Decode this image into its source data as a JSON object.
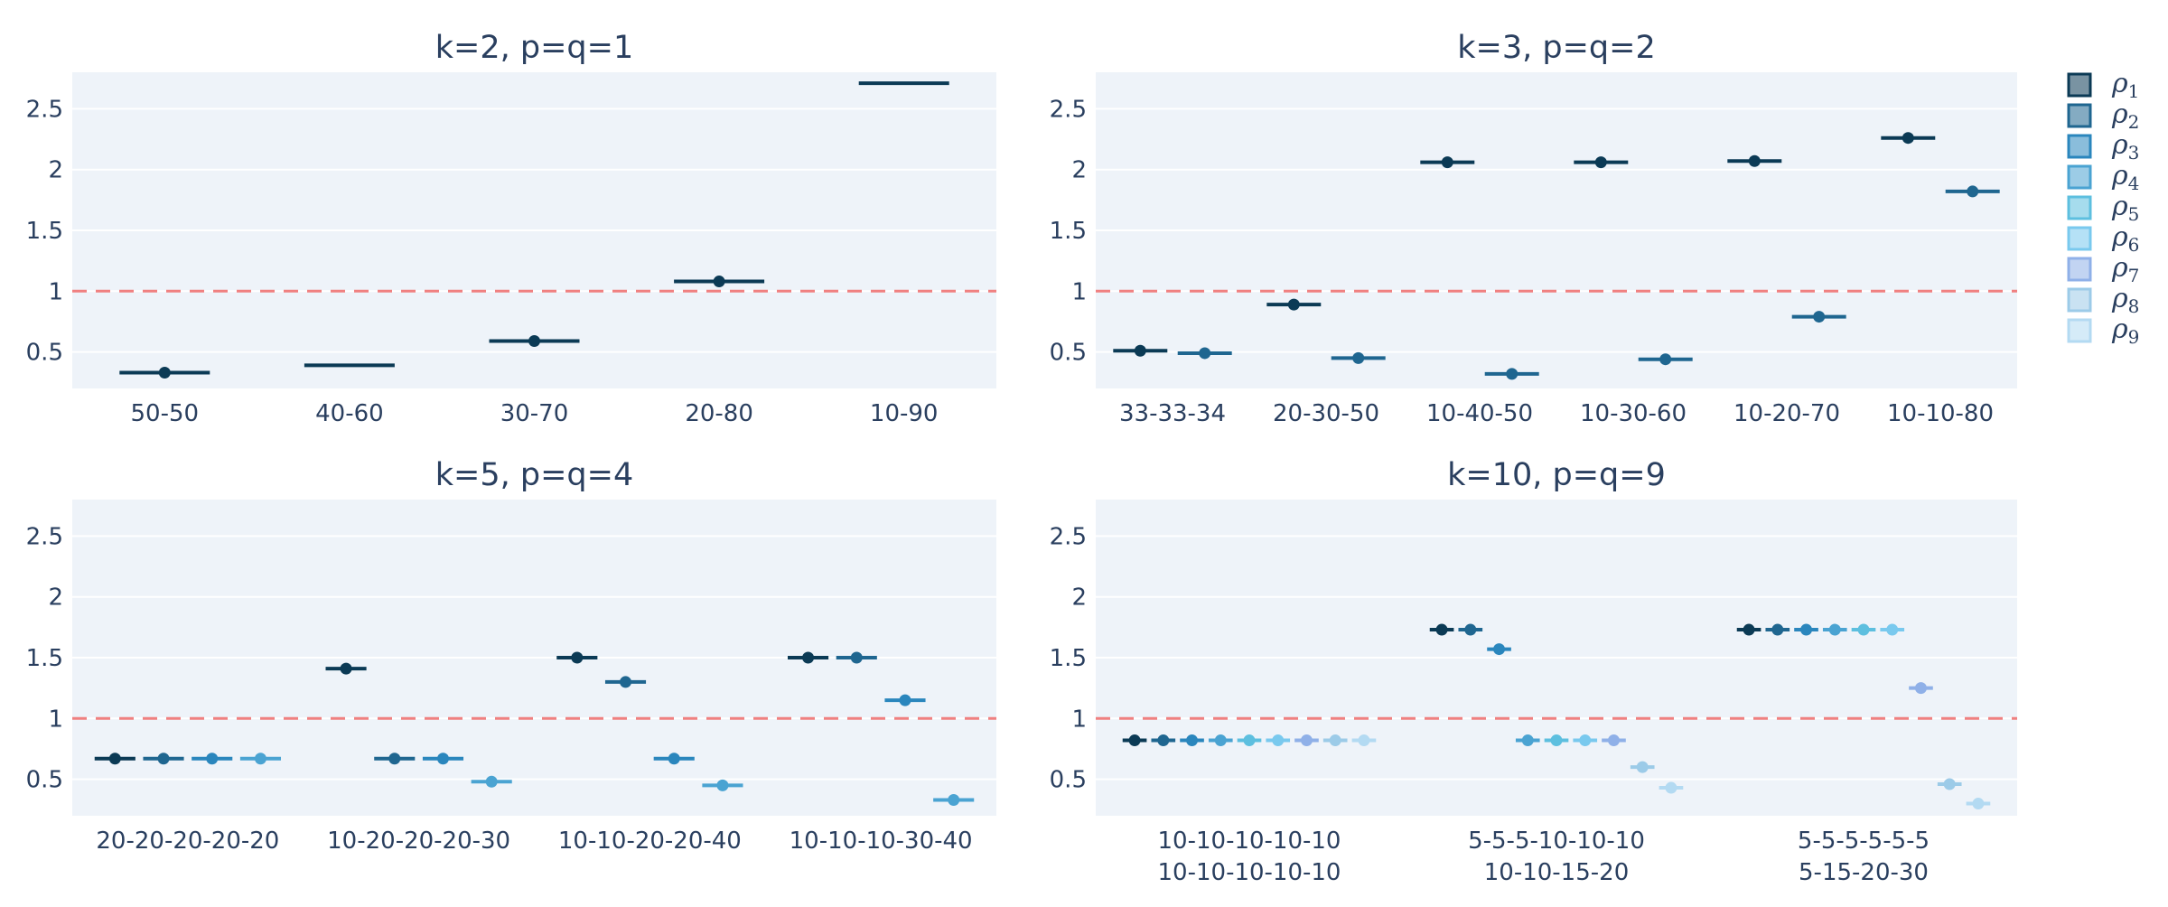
{
  "chart_data": {
    "type": "scatter",
    "subtitle_texts": [
      "k=2, p=q=1",
      "k=3, p=q=2",
      "k=5, p=q=4",
      "k=10, p=q=9"
    ],
    "legend": {
      "items": [
        {
          "symbol": "ρ",
          "sub": "1"
        },
        {
          "symbol": "ρ",
          "sub": "2"
        },
        {
          "symbol": "ρ",
          "sub": "3"
        },
        {
          "symbol": "ρ",
          "sub": "4"
        },
        {
          "symbol": "ρ",
          "sub": "5"
        },
        {
          "symbol": "ρ",
          "sub": "6"
        },
        {
          "symbol": "ρ",
          "sub": "7"
        },
        {
          "symbol": "ρ",
          "sub": "8"
        },
        {
          "symbol": "ρ",
          "sub": "9"
        }
      ],
      "placement": "top-right"
    },
    "series_colors": [
      "#0b3a55",
      "#1f6690",
      "#2a86bd",
      "#4aa3d2",
      "#5dbfdf",
      "#79c9ee",
      "#8fb0e8",
      "#9ccbe8",
      "#b3daf2"
    ],
    "reference_line": {
      "y": 1,
      "style": "dashed",
      "color": "#f08080"
    },
    "y_range": [
      0.2,
      2.8
    ],
    "y_ticks": [
      "0.5",
      "1",
      "1.5",
      "2",
      "2.5"
    ],
    "grid": true,
    "panels": [
      {
        "title": "k=2, p=q=1",
        "categories": [
          [
            "50-50"
          ],
          [
            "40-60"
          ],
          [
            "30-70"
          ],
          [
            "20-80"
          ],
          [
            "10-90"
          ]
        ],
        "points": [
          {
            "cat": 0,
            "series": 1,
            "y": 0.33,
            "dot": true
          },
          {
            "cat": 1,
            "series": 1,
            "y": 0.39,
            "dot": false
          },
          {
            "cat": 2,
            "series": 1,
            "y": 0.59,
            "dot": true
          },
          {
            "cat": 3,
            "series": 1,
            "y": 1.08,
            "dot": true
          },
          {
            "cat": 4,
            "series": 1,
            "y": 2.71,
            "dot": false
          }
        ]
      },
      {
        "title": "k=3, p=q=2",
        "categories": [
          [
            "33-33-34"
          ],
          [
            "20-30-50"
          ],
          [
            "10-40-50"
          ],
          [
            "10-30-60"
          ],
          [
            "10-20-70"
          ],
          [
            "10-10-80"
          ]
        ],
        "points": [
          {
            "cat": 0,
            "series": 1,
            "y": 0.51
          },
          {
            "cat": 0,
            "series": 2,
            "y": 0.49
          },
          {
            "cat": 1,
            "series": 1,
            "y": 0.89
          },
          {
            "cat": 1,
            "series": 2,
            "y": 0.45
          },
          {
            "cat": 2,
            "series": 1,
            "y": 2.06
          },
          {
            "cat": 2,
            "series": 2,
            "y": 0.32
          },
          {
            "cat": 3,
            "series": 1,
            "y": 2.06
          },
          {
            "cat": 3,
            "series": 2,
            "y": 0.44
          },
          {
            "cat": 4,
            "series": 1,
            "y": 2.07
          },
          {
            "cat": 4,
            "series": 2,
            "y": 0.79
          },
          {
            "cat": 5,
            "series": 1,
            "y": 2.26
          },
          {
            "cat": 5,
            "series": 2,
            "y": 1.82
          }
        ]
      },
      {
        "title": "k=5, p=q=4",
        "categories": [
          [
            "20-20-20-20-20"
          ],
          [
            "10-20-20-20-30"
          ],
          [
            "10-10-20-20-40"
          ],
          [
            "10-10-10-30-40"
          ]
        ],
        "points": [
          {
            "cat": 0,
            "series": 1,
            "y": 0.67
          },
          {
            "cat": 0,
            "series": 2,
            "y": 0.67
          },
          {
            "cat": 0,
            "series": 3,
            "y": 0.67
          },
          {
            "cat": 0,
            "series": 4,
            "y": 0.67
          },
          {
            "cat": 1,
            "series": 1,
            "y": 1.41
          },
          {
            "cat": 1,
            "series": 2,
            "y": 0.67
          },
          {
            "cat": 1,
            "series": 3,
            "y": 0.67
          },
          {
            "cat": 1,
            "series": 4,
            "y": 0.48
          },
          {
            "cat": 2,
            "series": 1,
            "y": 1.5
          },
          {
            "cat": 2,
            "series": 2,
            "y": 1.3
          },
          {
            "cat": 2,
            "series": 3,
            "y": 0.67
          },
          {
            "cat": 2,
            "series": 4,
            "y": 0.45
          },
          {
            "cat": 3,
            "series": 1,
            "y": 1.5
          },
          {
            "cat": 3,
            "series": 2,
            "y": 1.5
          },
          {
            "cat": 3,
            "series": 3,
            "y": 1.15
          },
          {
            "cat": 3,
            "series": 4,
            "y": 0.33
          }
        ]
      },
      {
        "title": "k=10, p=q=9",
        "categories": [
          [
            "10-10-10-10-10",
            "10-10-10-10-10"
          ],
          [
            "5-5-5-10-10-10",
            "10-10-15-20"
          ],
          [
            "5-5-5-5-5-5",
            "5-15-20-30"
          ]
        ],
        "points": [
          {
            "cat": 0,
            "series": 1,
            "y": 0.82
          },
          {
            "cat": 0,
            "series": 2,
            "y": 0.82
          },
          {
            "cat": 0,
            "series": 3,
            "y": 0.82
          },
          {
            "cat": 0,
            "series": 4,
            "y": 0.82
          },
          {
            "cat": 0,
            "series": 5,
            "y": 0.82
          },
          {
            "cat": 0,
            "series": 6,
            "y": 0.82
          },
          {
            "cat": 0,
            "series": 7,
            "y": 0.82
          },
          {
            "cat": 0,
            "series": 8,
            "y": 0.82
          },
          {
            "cat": 0,
            "series": 9,
            "y": 0.82
          },
          {
            "cat": 1,
            "series": 1,
            "y": 1.73
          },
          {
            "cat": 1,
            "series": 2,
            "y": 1.73
          },
          {
            "cat": 1,
            "series": 3,
            "y": 1.57
          },
          {
            "cat": 1,
            "series": 4,
            "y": 0.82
          },
          {
            "cat": 1,
            "series": 5,
            "y": 0.82
          },
          {
            "cat": 1,
            "series": 6,
            "y": 0.82
          },
          {
            "cat": 1,
            "series": 7,
            "y": 0.82
          },
          {
            "cat": 1,
            "series": 8,
            "y": 0.6
          },
          {
            "cat": 1,
            "series": 9,
            "y": 0.43
          },
          {
            "cat": 2,
            "series": 1,
            "y": 1.73
          },
          {
            "cat": 2,
            "series": 2,
            "y": 1.73
          },
          {
            "cat": 2,
            "series": 3,
            "y": 1.73
          },
          {
            "cat": 2,
            "series": 4,
            "y": 1.73
          },
          {
            "cat": 2,
            "series": 5,
            "y": 1.73
          },
          {
            "cat": 2,
            "series": 6,
            "y": 1.73
          },
          {
            "cat": 2,
            "series": 7,
            "y": 1.25
          },
          {
            "cat": 2,
            "series": 8,
            "y": 0.46
          },
          {
            "cat": 2,
            "series": 9,
            "y": 0.3
          }
        ]
      }
    ]
  }
}
